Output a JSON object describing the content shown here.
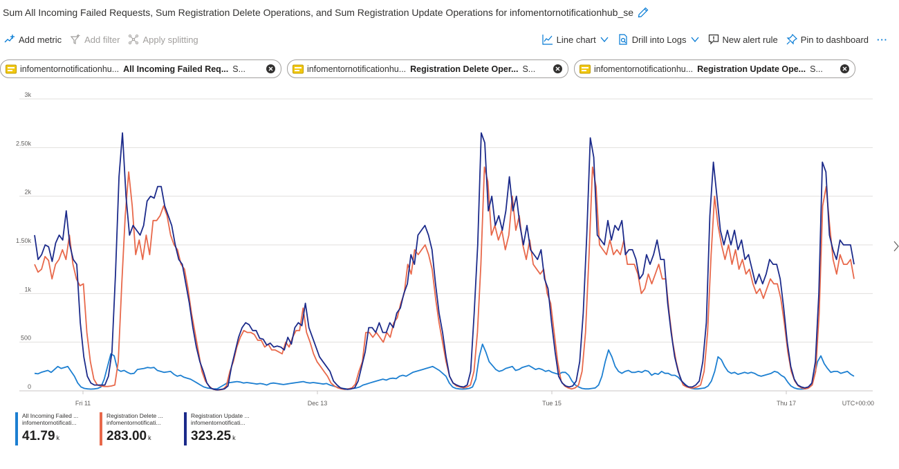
{
  "header": {
    "title": "Sum All Incoming Failed Requests, Sum Registration Delete Operations, and Sum Registration Update Operations for infomentornotificationhub_se"
  },
  "toolbar": {
    "add_metric": "Add metric",
    "add_filter": "Add filter",
    "apply_splitting": "Apply splitting",
    "line_chart": "Line chart",
    "drill_logs": "Drill into Logs",
    "new_alert": "New alert rule",
    "pin": "Pin to dashboard",
    "more": "···"
  },
  "pills": [
    {
      "resource": "infomentornotificationhu...",
      "metric": "All Incoming Failed Req...",
      "agg": "S..."
    },
    {
      "resource": "infomentornotificationhu...",
      "metric": "Registration Delete Oper...",
      "agg": "S..."
    },
    {
      "resource": "infomentornotificationhu...",
      "metric": "Registration Update Ope...",
      "agg": "S..."
    }
  ],
  "chart_data": {
    "type": "line",
    "x_ticks": [
      "Fri 11",
      "Dec 13",
      "Tue 15",
      "Thu 17"
    ],
    "y_ticks": [
      "0",
      "500",
      "1k",
      "1.50k",
      "2k",
      "2.50k",
      "3k"
    ],
    "ylim": [
      0,
      3000
    ],
    "timezone_label": "UTC+00:00",
    "grid": true,
    "legend_position": "bottom-left",
    "series": [
      {
        "name": "All Incoming Failed ...",
        "resource": "infomentornotificati...",
        "total": "41.79",
        "unit": "k",
        "color": "#1c7fd1",
        "values": [
          180,
          175,
          190,
          200,
          210,
          190,
          220,
          250,
          230,
          240,
          250,
          200,
          150,
          80,
          40,
          25,
          20,
          18,
          20,
          25,
          40,
          120,
          250,
          380,
          360,
          220,
          200,
          210,
          190,
          175,
          180,
          220,
          225,
          230,
          240,
          235,
          240,
          210,
          200,
          190,
          195,
          200,
          170,
          150,
          160,
          140,
          130,
          120,
          100,
          80,
          60,
          40,
          30,
          25,
          20,
          20,
          40,
          60,
          80,
          85,
          90,
          95,
          90,
          80,
          85,
          80,
          75,
          70,
          75,
          70,
          60,
          75,
          80,
          75,
          70,
          65,
          70,
          75,
          80,
          85,
          90,
          95,
          85,
          80,
          85,
          80,
          75,
          70,
          75,
          60,
          50,
          40,
          30,
          25,
          20,
          20,
          25,
          30,
          40,
          60,
          70,
          80,
          90,
          100,
          110,
          120,
          110,
          125,
          130,
          125,
          150,
          160,
          150,
          170,
          190,
          200,
          210,
          220,
          230,
          240,
          250,
          230,
          210,
          180,
          150,
          80,
          40,
          25,
          20,
          18,
          20,
          25,
          40,
          120,
          350,
          480,
          400,
          300,
          260,
          220,
          200,
          210,
          230,
          240,
          250,
          210,
          220,
          240,
          250,
          260,
          240,
          220,
          230,
          220,
          200,
          210,
          190,
          180,
          170,
          190,
          190,
          160,
          100,
          60,
          40,
          25,
          20,
          20,
          25,
          30,
          60,
          150,
          300,
          420,
          350,
          250,
          200,
          180,
          200,
          210,
          190,
          190,
          200,
          190,
          210,
          200,
          160,
          180,
          170,
          200,
          180,
          180,
          160,
          160,
          140,
          100,
          70,
          40,
          25,
          20,
          20,
          25,
          30,
          50,
          100,
          200,
          350,
          320,
          250,
          200,
          180,
          190,
          170,
          180,
          190,
          180,
          190,
          180,
          160,
          150,
          160,
          170,
          180,
          200,
          190,
          160,
          140,
          90,
          50,
          30,
          20,
          18,
          20,
          25,
          50,
          150,
          300,
          360,
          280,
          230,
          190,
          200,
          200,
          180,
          190,
          200,
          170,
          150
        ]
      },
      {
        "name": "Registration Delete ...",
        "resource": "infomentornotificati...",
        "total": "283.00",
        "unit": "k",
        "color": "#e8684a",
        "values": [
          1300,
          1220,
          1250,
          1380,
          1340,
          1150,
          1300,
          1350,
          1450,
          1350,
          1600,
          1300,
          1150,
          1080,
          1100,
          600,
          300,
          120,
          60,
          50,
          45,
          45,
          50,
          60,
          300,
          1100,
          1800,
          2250,
          1900,
          1400,
          1550,
          1350,
          1600,
          1400,
          1750,
          1750,
          1800,
          1900,
          1800,
          1600,
          1500,
          1450,
          1300,
          1250,
          1050,
          800,
          600,
          400,
          200,
          100,
          50,
          20,
          10,
          10,
          15,
          50,
          200,
          300,
          450,
          550,
          620,
          600,
          600,
          580,
          520,
          520,
          450,
          480,
          420,
          420,
          400,
          380,
          500,
          450,
          550,
          620,
          620,
          850,
          600,
          500,
          380,
          300,
          250,
          200,
          150,
          80,
          50,
          30,
          20,
          15,
          20,
          30,
          70,
          200,
          300,
          600,
          600,
          550,
          600,
          550,
          500,
          600,
          550,
          700,
          750,
          900,
          1000,
          1300,
          1200,
          1450,
          1400,
          1450,
          1500,
          1400,
          1250,
          950,
          700,
          500,
          300,
          150,
          80,
          50,
          40,
          30,
          40,
          60,
          200,
          600,
          1300,
          2300,
          2150,
          1600,
          1700,
          1550,
          1650,
          1450,
          1600,
          2000,
          1650,
          1800,
          1500,
          1350,
          1550,
          1300,
          1250,
          1200,
          1250,
          1000,
          900,
          600,
          300,
          100,
          50,
          30,
          20,
          30,
          60,
          200,
          600,
          1400,
          2300,
          2100,
          1500,
          1450,
          1400,
          1550,
          1400,
          1450,
          1400,
          1550,
          1300,
          1300,
          1300,
          1200,
          1000,
          1050,
          1200,
          1100,
          1200,
          1300,
          1150,
          1150,
          800,
          500,
          300,
          150,
          60,
          40,
          30,
          30,
          40,
          60,
          200,
          600,
          1400,
          2000,
          1700,
          1500,
          1350,
          1500,
          1300,
          1450,
          1250,
          1350,
          1200,
          1250,
          1100,
          1000,
          1050,
          950,
          1050,
          1150,
          1100,
          1100,
          950,
          700,
          400,
          200,
          100,
          50,
          30,
          20,
          30,
          60,
          200,
          800,
          1900,
          2100,
          1700,
          1350,
          1200,
          1400,
          1300,
          1300,
          1350,
          1150
        ]
      },
      {
        "name": "Registration Update ...",
        "resource": "infomentornotificati...",
        "total": "323.25",
        "unit": "k",
        "color": "#1b2a8a",
        "values": [
          1600,
          1350,
          1400,
          1500,
          1480,
          1330,
          1520,
          1600,
          1550,
          1850,
          1500,
          1350,
          1300,
          700,
          350,
          150,
          80,
          60,
          60,
          60,
          60,
          150,
          400,
          1200,
          2200,
          2650,
          2000,
          1600,
          1700,
          1650,
          1600,
          1700,
          1950,
          2000,
          1980,
          2100,
          2100,
          1900,
          1800,
          1700,
          1500,
          1350,
          1300,
          1100,
          900,
          650,
          450,
          300,
          200,
          80,
          30,
          15,
          10,
          15,
          20,
          50,
          250,
          400,
          550,
          650,
          700,
          680,
          620,
          620,
          540,
          530,
          470,
          490,
          450,
          460,
          450,
          420,
          550,
          480,
          650,
          700,
          670,
          900,
          650,
          550,
          450,
          350,
          300,
          250,
          200,
          100,
          60,
          30,
          20,
          15,
          20,
          30,
          100,
          250,
          400,
          650,
          650,
          600,
          700,
          600,
          600,
          700,
          650,
          800,
          850,
          1000,
          1100,
          1400,
          1300,
          1600,
          1650,
          1700,
          1600,
          1450,
          1100,
          800,
          600,
          350,
          150,
          80,
          60,
          45,
          40,
          60,
          200,
          800,
          1500,
          2650,
          2550,
          1850,
          2000,
          1700,
          1800,
          1650,
          1850,
          2200,
          1850,
          2000,
          1700,
          1500,
          1700,
          1450,
          1400,
          1350,
          1450,
          1150,
          1050,
          700,
          400,
          150,
          80,
          50,
          40,
          50,
          100,
          300,
          800,
          1600,
          2600,
          2400,
          1600,
          1550,
          1500,
          1750,
          1550,
          1700,
          1650,
          1750,
          1400,
          1450,
          1450,
          1350,
          1150,
          1200,
          1400,
          1300,
          1400,
          1550,
          1350,
          1350,
          900,
          600,
          350,
          200,
          100,
          60,
          40,
          40,
          60,
          100,
          300,
          700,
          1800,
          2350,
          2000,
          1650,
          1500,
          1650,
          1500,
          1650,
          1450,
          1550,
          1350,
          1400,
          1250,
          1100,
          1200,
          1100,
          1200,
          1350,
          1300,
          1300,
          1150,
          850,
          500,
          250,
          120,
          60,
          40,
          30,
          40,
          80,
          300,
          1000,
          2350,
          2250,
          1600,
          1450,
          1350,
          1550,
          1500,
          1500,
          1500,
          1300
        ]
      }
    ]
  }
}
